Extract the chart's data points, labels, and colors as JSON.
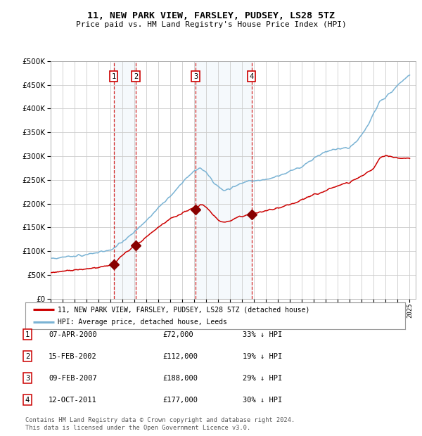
{
  "title": "11, NEW PARK VIEW, FARSLEY, PUDSEY, LS28 5TZ",
  "subtitle": "Price paid vs. HM Land Registry's House Price Index (HPI)",
  "footer": "Contains HM Land Registry data © Crown copyright and database right 2024.\nThis data is licensed under the Open Government Licence v3.0.",
  "legend_line1": "11, NEW PARK VIEW, FARSLEY, PUDSEY, LS28 5TZ (detached house)",
  "legend_line2": "HPI: Average price, detached house, Leeds",
  "transactions": [
    {
      "num": 1,
      "date": "07-APR-2000",
      "price": 72000,
      "pct": "33%",
      "dir": "↓",
      "year_x": 2000.27
    },
    {
      "num": 2,
      "date": "15-FEB-2002",
      "price": 112000,
      "pct": "19%",
      "dir": "↓",
      "year_x": 2002.12
    },
    {
      "num": 3,
      "date": "09-FEB-2007",
      "price": 188000,
      "pct": "29%",
      "dir": "↓",
      "year_x": 2007.11
    },
    {
      "num": 4,
      "date": "12-OCT-2011",
      "price": 177000,
      "pct": "30%",
      "dir": "↓",
      "year_x": 2011.78
    }
  ],
  "hpi_color": "#7ab3d4",
  "price_color": "#cc0000",
  "marker_color": "#880000",
  "shade_color": "#daeaf5",
  "vline_color": "#cc0000",
  "grid_color": "#cccccc",
  "ylim": [
    0,
    500000
  ],
  "xlim": [
    1995.0,
    2025.5
  ],
  "yticks": [
    0,
    50000,
    100000,
    150000,
    200000,
    250000,
    300000,
    350000,
    400000,
    450000,
    500000
  ],
  "xticks": [
    1995,
    1996,
    1997,
    1998,
    1999,
    2000,
    2001,
    2002,
    2003,
    2004,
    2005,
    2006,
    2007,
    2008,
    2009,
    2010,
    2011,
    2012,
    2013,
    2014,
    2015,
    2016,
    2017,
    2018,
    2019,
    2020,
    2021,
    2022,
    2023,
    2024,
    2025
  ],
  "background_color": "#ffffff",
  "plot_bg_color": "#ffffff",
  "marker_prices": [
    72000,
    112000,
    188000,
    177000
  ]
}
